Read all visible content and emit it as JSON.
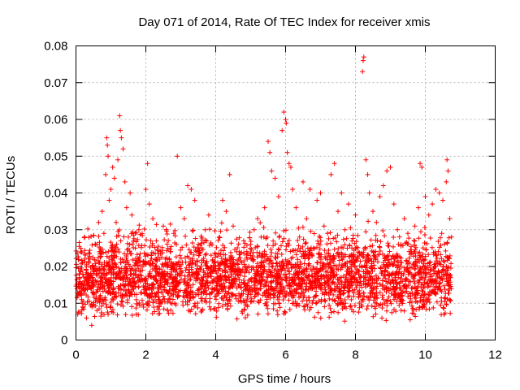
{
  "chart_data": {
    "type": "scatter",
    "title": "Day 071 of 2014, Rate Of TEC Index for receiver xmis",
    "xlabel": "GPS time / hours",
    "ylabel": "ROTI / TECUs",
    "xlim": [
      0,
      12
    ],
    "ylim": [
      0,
      0.08
    ],
    "x_ticks": [
      0,
      2,
      4,
      6,
      8,
      10,
      12
    ],
    "y_ticks": [
      0,
      0.01,
      0.02,
      0.03,
      0.04,
      0.05,
      0.06,
      0.07,
      0.08
    ],
    "x_tick_labels": [
      "0",
      "2",
      "4",
      "6",
      "8",
      "10",
      "12"
    ],
    "y_tick_labels": [
      "0",
      "0.01",
      "0.02",
      "0.03",
      "0.04",
      "0.05",
      "0.06",
      "0.07",
      "0.08"
    ],
    "grid": true,
    "marker": "+",
    "color": "#ff0000",
    "data_extent_hours": [
      0,
      10.75
    ],
    "typical_range": [
      0.005,
      0.03
    ],
    "series": [
      {
        "name": "ROTI",
        "points": [
          [
            0.05,
            0.012
          ],
          [
            0.1,
            0.018
          ],
          [
            0.15,
            0.024
          ],
          [
            0.2,
            0.009
          ],
          [
            0.25,
            0.028
          ],
          [
            0.3,
            0.006
          ],
          [
            0.35,
            0.015
          ],
          [
            0.4,
            0.022
          ],
          [
            0.45,
            0.004
          ],
          [
            0.5,
            0.013
          ],
          [
            0.55,
            0.026
          ],
          [
            0.6,
            0.008
          ],
          [
            0.65,
            0.032
          ],
          [
            0.7,
            0.011
          ],
          [
            0.75,
            0.035
          ],
          [
            0.8,
            0.029
          ],
          [
            0.85,
            0.045
          ],
          [
            0.88,
            0.055
          ],
          [
            0.9,
            0.053
          ],
          [
            0.92,
            0.05
          ],
          [
            0.95,
            0.038
          ],
          [
            1.0,
            0.041
          ],
          [
            1.05,
            0.047
          ],
          [
            1.1,
            0.044
          ],
          [
            1.15,
            0.032
          ],
          [
            1.2,
            0.049
          ],
          [
            1.25,
            0.061
          ],
          [
            1.27,
            0.057
          ],
          [
            1.3,
            0.055
          ],
          [
            1.35,
            0.052
          ],
          [
            1.4,
            0.043
          ],
          [
            1.45,
            0.036
          ],
          [
            1.5,
            0.028
          ],
          [
            1.55,
            0.04
          ],
          [
            1.6,
            0.034
          ],
          [
            1.7,
            0.025
          ],
          [
            1.8,
            0.03
          ],
          [
            1.9,
            0.019
          ],
          [
            2.0,
            0.041
          ],
          [
            2.05,
            0.048
          ],
          [
            2.1,
            0.037
          ],
          [
            2.2,
            0.033
          ],
          [
            2.3,
            0.027
          ],
          [
            2.4,
            0.022
          ],
          [
            2.5,
            0.031
          ],
          [
            2.6,
            0.018
          ],
          [
            2.7,
            0.024
          ],
          [
            2.8,
            0.029
          ],
          [
            2.9,
            0.05
          ],
          [
            3.0,
            0.036
          ],
          [
            3.1,
            0.033
          ],
          [
            3.2,
            0.042
          ],
          [
            3.3,
            0.041
          ],
          [
            3.4,
            0.038
          ],
          [
            3.5,
            0.026
          ],
          [
            3.6,
            0.021
          ],
          [
            3.7,
            0.03
          ],
          [
            3.8,
            0.034
          ],
          [
            3.9,
            0.016
          ],
          [
            4.0,
            0.02
          ],
          [
            4.1,
            0.028
          ],
          [
            4.2,
            0.038
          ],
          [
            4.3,
            0.035
          ],
          [
            4.4,
            0.045
          ],
          [
            4.5,
            0.031
          ],
          [
            4.6,
            0.024
          ],
          [
            4.7,
            0.019
          ],
          [
            4.8,
            0.027
          ],
          [
            4.9,
            0.022
          ],
          [
            5.0,
            0.026
          ],
          [
            5.1,
            0.03
          ],
          [
            5.2,
            0.033
          ],
          [
            5.3,
            0.028
          ],
          [
            5.4,
            0.036
          ],
          [
            5.5,
            0.054
          ],
          [
            5.55,
            0.051
          ],
          [
            5.6,
            0.046
          ],
          [
            5.7,
            0.044
          ],
          [
            5.8,
            0.039
          ],
          [
            5.9,
            0.057
          ],
          [
            5.95,
            0.062
          ],
          [
            6.0,
            0.06
          ],
          [
            6.02,
            0.059
          ],
          [
            6.05,
            0.051
          ],
          [
            6.1,
            0.048
          ],
          [
            6.15,
            0.047
          ],
          [
            6.2,
            0.041
          ],
          [
            6.3,
            0.036
          ],
          [
            6.4,
            0.028
          ],
          [
            6.5,
            0.043
          ],
          [
            6.6,
            0.033
          ],
          [
            6.7,
            0.041
          ],
          [
            6.8,
            0.025
          ],
          [
            6.9,
            0.038
          ],
          [
            7.0,
            0.04
          ],
          [
            7.1,
            0.031
          ],
          [
            7.2,
            0.029
          ],
          [
            7.3,
            0.045
          ],
          [
            7.4,
            0.048
          ],
          [
            7.5,
            0.035
          ],
          [
            7.6,
            0.04
          ],
          [
            7.7,
            0.03
          ],
          [
            7.8,
            0.037
          ],
          [
            7.9,
            0.027
          ],
          [
            8.0,
            0.034
          ],
          [
            8.2,
            0.073
          ],
          [
            8.22,
            0.076
          ],
          [
            8.24,
            0.077
          ],
          [
            8.3,
            0.049
          ],
          [
            8.35,
            0.045
          ],
          [
            8.4,
            0.04
          ],
          [
            8.5,
            0.035
          ],
          [
            8.6,
            0.032
          ],
          [
            8.7,
            0.039
          ],
          [
            8.8,
            0.042
          ],
          [
            8.9,
            0.046
          ],
          [
            9.0,
            0.047
          ],
          [
            9.1,
            0.037
          ],
          [
            9.2,
            0.03
          ],
          [
            9.3,
            0.026
          ],
          [
            9.4,
            0.033
          ],
          [
            9.5,
            0.029
          ],
          [
            9.6,
            0.024
          ],
          [
            9.7,
            0.031
          ],
          [
            9.8,
            0.036
          ],
          [
            9.85,
            0.048
          ],
          [
            9.9,
            0.047
          ],
          [
            10.0,
            0.039
          ],
          [
            10.1,
            0.034
          ],
          [
            10.2,
            0.037
          ],
          [
            10.3,
            0.041
          ],
          [
            10.4,
            0.04
          ],
          [
            10.5,
            0.038
          ],
          [
            10.6,
            0.043
          ],
          [
            10.62,
            0.049
          ],
          [
            10.65,
            0.046
          ],
          [
            10.7,
            0.033
          ],
          [
            10.75,
            0.028
          ]
        ]
      }
    ]
  }
}
